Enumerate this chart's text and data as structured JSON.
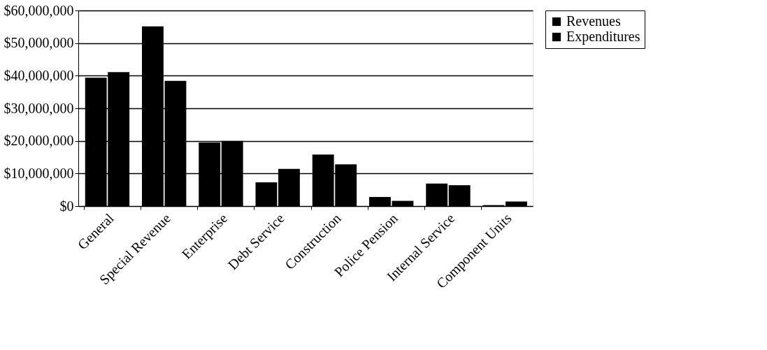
{
  "chart_data": {
    "type": "bar",
    "categories": [
      "General",
      "Special Revenue",
      "Enterprise",
      "Debt Service",
      "Construction",
      "Police Pension",
      "Internal Service",
      "Component Units"
    ],
    "series": [
      {
        "name": "Revenues",
        "color": "#000000",
        "values": [
          39400000,
          55100000,
          19500000,
          7300000,
          15800000,
          2800000,
          6900000,
          300000
        ]
      },
      {
        "name": "Expenditures",
        "color": "#000000",
        "values": [
          41100000,
          38400000,
          20000000,
          11400000,
          12800000,
          1600000,
          6400000,
          1400000
        ]
      }
    ],
    "ylim": [
      0,
      60000000
    ],
    "yticks": [
      {
        "value": 0,
        "label": "$0"
      },
      {
        "value": 10000000,
        "label": "$10,000,000"
      },
      {
        "value": 20000000,
        "label": "$20,000,000"
      },
      {
        "value": 30000000,
        "label": "$30,000,000"
      },
      {
        "value": 40000000,
        "label": "$40,000,000"
      },
      {
        "value": 50000000,
        "label": "$50,000,000"
      },
      {
        "value": 60000000,
        "label": "$60,000,000"
      }
    ],
    "grid": "y",
    "legend": "right"
  }
}
